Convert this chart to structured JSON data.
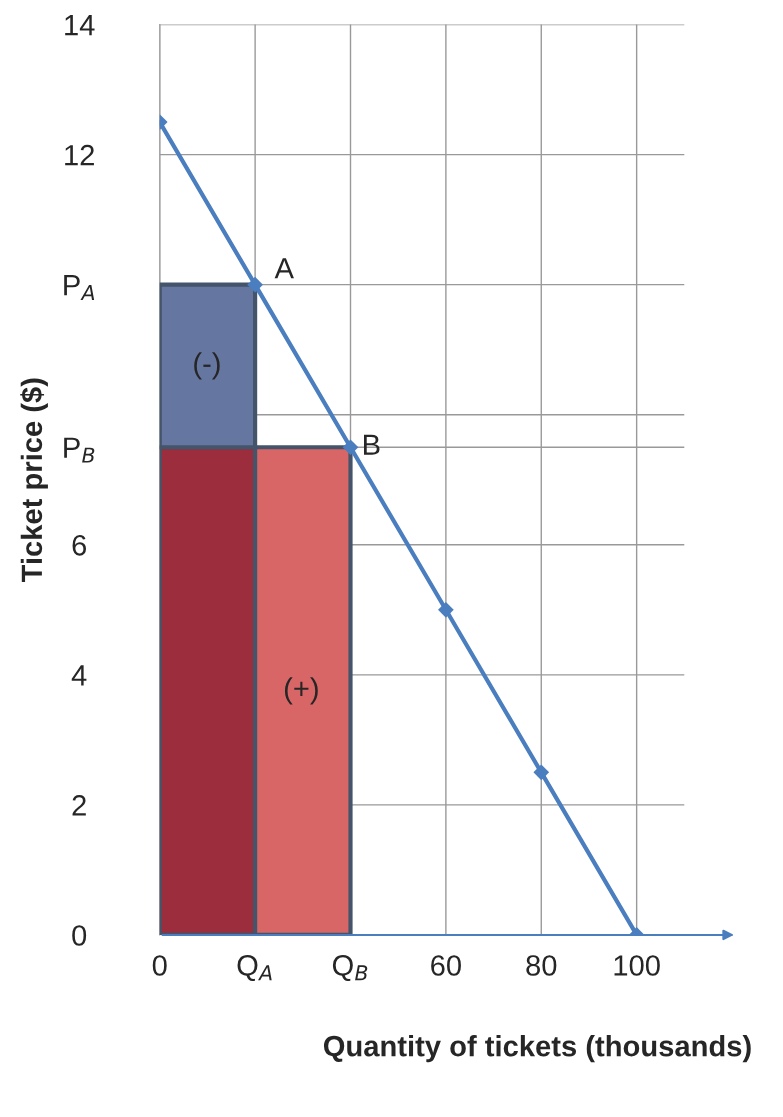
{
  "chart_data": {
    "type": "line",
    "xlabel": "Quantity of tickets (thousands)",
    "ylabel": "Ticket price ($)",
    "series": [
      {
        "type": "bar",
        "x": [
          10,
          30
        ],
        "values": [
          7.5,
          7.5
        ],
        "colors": [
          "#9b2d3c",
          "#d96666"
        ]
      },
      {
        "type": "bar",
        "x": [
          10
        ],
        "values": [
          2.5
        ],
        "color": "#6577a0"
      },
      {
        "x": [
          0,
          20,
          40,
          60,
          80,
          100
        ],
        "values": [
          12.5,
          10,
          7.5,
          5,
          2.5,
          0
        ],
        "color": "#4a7ebf",
        "marker": "diamond"
      }
    ],
    "annotations": [
      {
        "text": "A",
        "x": 20,
        "y": 10
      },
      {
        "text": "B",
        "x": 40,
        "y": 7.5
      },
      "(-)",
      "(+)"
    ],
    "stacked": true,
    "xlim": [
      0,
      110
    ],
    "ylim": [
      0,
      14
    ],
    "xticks": [
      0,
      {
        "value": 20,
        "label": "Q$_{A}$"
      },
      {
        "value": 40,
        "label": "Q$_{B}$"
      },
      60,
      80,
      100
    ],
    "yticks": [
      0,
      2,
      4,
      6,
      {
        "value": 7.5,
        "label": "P$_{B}$"
      },
      {
        "value": 8,
        "label": null
      },
      {
        "value": 10,
        "label": "P$_{A}$"
      },
      12,
      14
    ],
    "grid": true
  }
}
